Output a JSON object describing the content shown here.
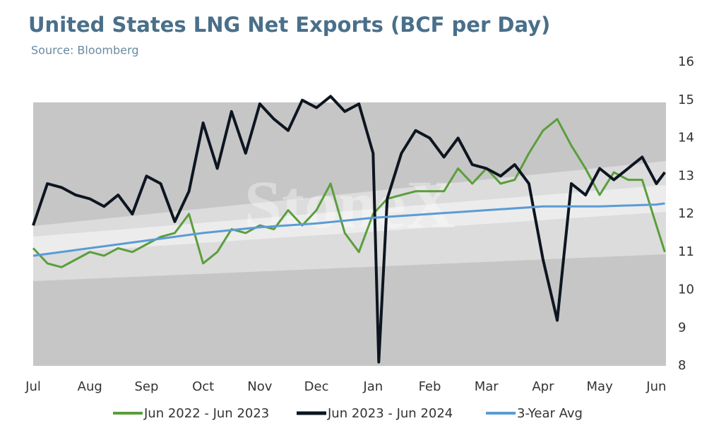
{
  "chart_data": {
    "type": "line",
    "title": "United States LNG Net Exports (BCF per Day)",
    "subtitle": "Source: Bloomberg",
    "watermark": "StoneX",
    "xlim": [
      0,
      11.17
    ],
    "xticks": [
      {
        "value": 0,
        "label": "Jul"
      },
      {
        "value": 1,
        "label": "Aug"
      },
      {
        "value": 2,
        "label": "Sep"
      },
      {
        "value": 3,
        "label": "Oct"
      },
      {
        "value": 4,
        "label": "Nov"
      },
      {
        "value": 5,
        "label": "Dec"
      },
      {
        "value": 6,
        "label": "Jan"
      },
      {
        "value": 7,
        "label": "Feb"
      },
      {
        "value": 8,
        "label": "Mar"
      },
      {
        "value": 9,
        "label": "Apr"
      },
      {
        "value": 10,
        "label": "May"
      },
      {
        "value": 11,
        "label": "Jun"
      }
    ],
    "ylim": [
      8,
      16
    ],
    "yticks": [
      8,
      9,
      10,
      11,
      12,
      13,
      14,
      15,
      16
    ],
    "grid": false,
    "legend": "bottom",
    "series": [
      {
        "name": "Jun 2022 - Jun 2023",
        "color": "#5a9e3c",
        "width": 3,
        "x": [
          0,
          0.25,
          0.5,
          0.75,
          1,
          1.25,
          1.5,
          1.75,
          2,
          2.25,
          2.5,
          2.75,
          3,
          3.25,
          3.5,
          3.75,
          4,
          4.25,
          4.5,
          4.75,
          5,
          5.25,
          5.5,
          5.75,
          6,
          6.25,
          6.5,
          6.75,
          7,
          7.25,
          7.5,
          7.75,
          8,
          8.25,
          8.5,
          8.75,
          9,
          9.25,
          9.5,
          9.75,
          10,
          10.25,
          10.5,
          10.75,
          11,
          11.15
        ],
        "values": [
          11.1,
          10.7,
          10.6,
          10.8,
          11.0,
          10.9,
          11.1,
          11.0,
          11.2,
          11.4,
          11.5,
          12.0,
          10.7,
          11.0,
          11.6,
          11.5,
          11.7,
          11.6,
          12.1,
          11.7,
          12.1,
          12.8,
          11.5,
          11.0,
          12.0,
          12.4,
          12.5,
          12.6,
          12.6,
          12.6,
          13.2,
          12.8,
          13.2,
          12.8,
          12.9,
          13.6,
          14.2,
          14.5,
          13.8,
          13.2,
          12.5,
          13.1,
          12.9,
          12.9,
          11.7,
          11.0
        ]
      },
      {
        "name": "Jun 2023 - Jun 2024",
        "color": "#0d1520",
        "width": 4,
        "x": [
          0,
          0.25,
          0.5,
          0.75,
          1,
          1.25,
          1.5,
          1.75,
          2,
          2.25,
          2.5,
          2.75,
          3,
          3.25,
          3.5,
          3.75,
          4,
          4.25,
          4.5,
          4.75,
          5,
          5.25,
          5.5,
          5.75,
          6,
          6.1,
          6.25,
          6.5,
          6.75,
          7,
          7.25,
          7.5,
          7.75,
          8,
          8.25,
          8.5,
          8.75,
          9,
          9.25,
          9.5,
          9.75,
          10,
          10.25,
          10.5,
          10.75,
          11,
          11.15
        ],
        "values": [
          11.7,
          12.8,
          12.7,
          12.5,
          12.4,
          12.2,
          12.5,
          12.0,
          13.0,
          12.8,
          11.8,
          12.6,
          14.4,
          13.2,
          14.7,
          13.6,
          14.9,
          14.5,
          14.2,
          15.0,
          14.8,
          15.1,
          14.7,
          14.9,
          13.6,
          8.1,
          12.4,
          13.6,
          14.2,
          14.0,
          13.5,
          14.0,
          13.3,
          13.2,
          13.0,
          13.3,
          12.8,
          10.8,
          9.2,
          12.8,
          12.5,
          13.2,
          12.9,
          13.2,
          13.5,
          12.8,
          13.1
        ]
      },
      {
        "name": "3-Year Avg",
        "color": "#5b9bd5",
        "width": 3,
        "x": [
          0,
          1,
          2,
          3,
          4,
          5,
          6,
          7,
          8,
          9,
          10,
          11,
          11.15
        ],
        "values": [
          10.9,
          11.1,
          11.3,
          11.5,
          11.65,
          11.75,
          11.9,
          12.0,
          12.1,
          12.2,
          12.2,
          12.25,
          12.28
        ]
      }
    ]
  }
}
